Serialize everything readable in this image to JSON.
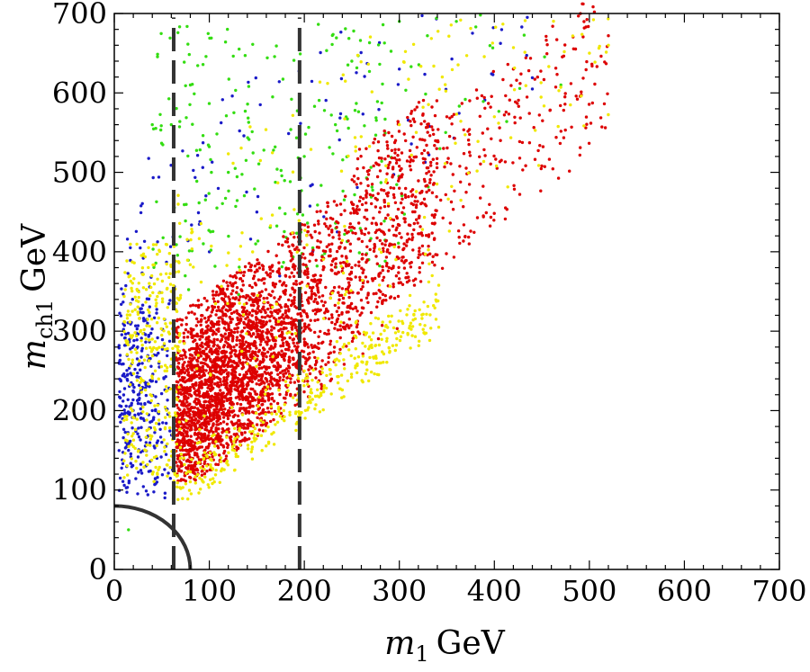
{
  "chart_data": {
    "type": "scatter",
    "title": "",
    "xlabel": {
      "var": "m",
      "sub": "1",
      "unit": "GeV"
    },
    "ylabel": {
      "var": "m",
      "sub": "ch1",
      "unit": "GeV"
    },
    "xlim": [
      0,
      700
    ],
    "ylim": [
      0,
      700
    ],
    "xticks": [
      "0",
      "100",
      "200",
      "300",
      "400",
      "500",
      "600",
      "700"
    ],
    "yticks": [
      "0",
      "100",
      "200",
      "300",
      "400",
      "500",
      "600",
      "700"
    ],
    "colors": {
      "red": "#dd0000",
      "yellow": "#f0e800",
      "green": "#33dd11",
      "blue": "#1a1ac8",
      "guide": "#333333"
    },
    "vertical_lines": [
      {
        "x": 62.5,
        "style": "dashed"
      },
      {
        "x": 195,
        "style": "dashed"
      }
    ],
    "boundary_arc": {
      "shape": "quarter-circle",
      "radius": 80
    },
    "series": [
      {
        "name": "red",
        "color": "#dd0000",
        "point_count": 3400,
        "description": "dense band, m1 ~ 60-520 GeV"
      },
      {
        "name": "yellow",
        "color": "#f0e800",
        "point_count": 900,
        "description": "scattered, mostly edges of red band"
      },
      {
        "name": "green",
        "color": "#33dd11",
        "point_count": 260,
        "description": "upper region, m_ch1 ~ 350-700 GeV"
      },
      {
        "name": "blue",
        "color": "#1a1ac8",
        "point_count": 420,
        "description": "low m1 ~ 0-65 GeV and scattered upper region"
      }
    ],
    "sample_points": {
      "red": [
        [
          70,
          130
        ],
        [
          100,
          200
        ],
        [
          120,
          260
        ],
        [
          150,
          300
        ],
        [
          180,
          350
        ],
        [
          200,
          290
        ],
        [
          250,
          380
        ],
        [
          300,
          480
        ],
        [
          350,
          570
        ],
        [
          420,
          630
        ],
        [
          520,
          672
        ]
      ],
      "yellow": [
        [
          40,
          290
        ],
        [
          60,
          350
        ],
        [
          90,
          160
        ],
        [
          200,
          250
        ],
        [
          300,
          560
        ],
        [
          400,
          570
        ],
        [
          500,
          650
        ],
        [
          520,
          660
        ]
      ],
      "green": [
        [
          15,
          50
        ],
        [
          60,
          560
        ],
        [
          80,
          610
        ],
        [
          120,
          500
        ],
        [
          200,
          520
        ],
        [
          250,
          640
        ],
        [
          300,
          690
        ],
        [
          360,
          690
        ],
        [
          470,
          610
        ]
      ],
      "blue": [
        [
          15,
          150
        ],
        [
          25,
          220
        ],
        [
          35,
          310
        ],
        [
          40,
          200
        ],
        [
          50,
          160
        ],
        [
          100,
          400
        ],
        [
          150,
          450
        ],
        [
          300,
          630
        ],
        [
          440,
          605
        ]
      ]
    }
  }
}
